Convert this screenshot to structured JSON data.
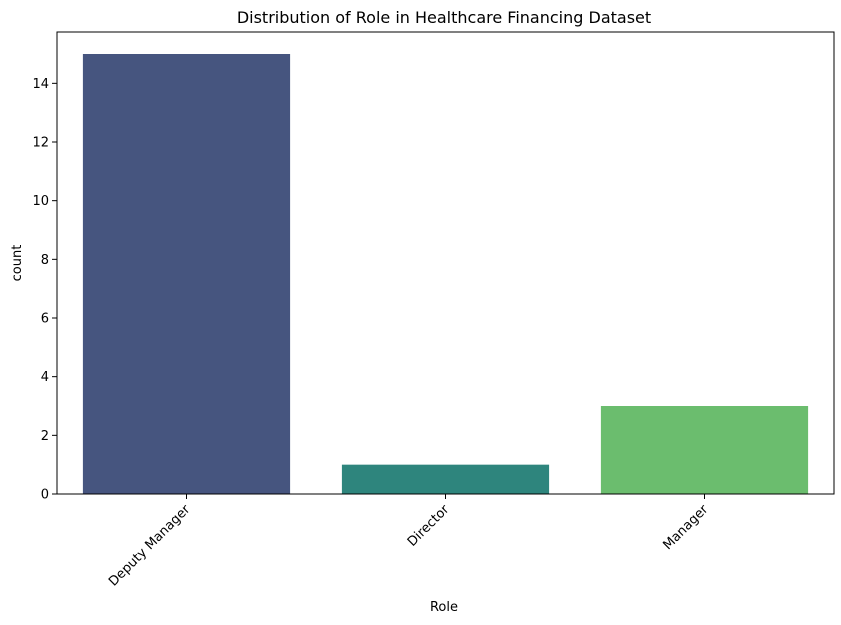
{
  "chart_data": {
    "type": "bar",
    "title": "Distribution of Role in Healthcare Financing Dataset",
    "xlabel": "Role",
    "ylabel": "count",
    "categories": [
      "Deputy Manager",
      "Director",
      "Manager"
    ],
    "values": [
      15,
      1,
      3
    ],
    "colors": [
      "#46557f",
      "#2e857d",
      "#6bbd6e"
    ],
    "ylim": [
      0,
      15.75
    ],
    "yticks": [
      0,
      2,
      4,
      6,
      8,
      10,
      12,
      14
    ],
    "xtick_rotation_deg": -45,
    "grid": false,
    "legend": "none"
  }
}
